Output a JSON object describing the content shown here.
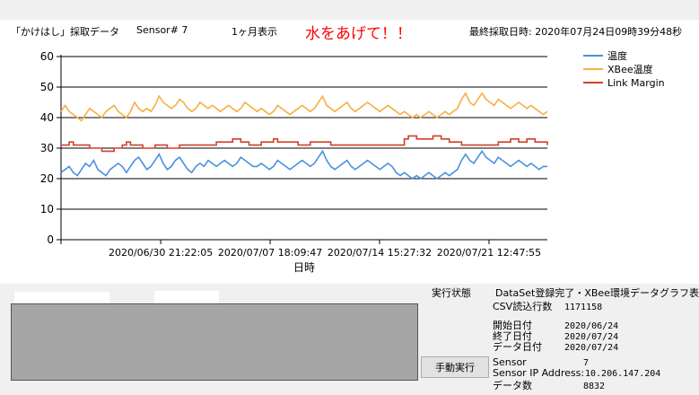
{
  "header": {
    "app_title": "「かけはし」採取データ",
    "sensor_label": "Sensor#  7",
    "period_label": "1ヶ月表示",
    "alert": "水をあげて！！",
    "last_sample": "最終採取日時: 2020年07月24日09時39分48秒"
  },
  "chart_data": {
    "type": "line",
    "xlabel": "日時",
    "ylabel": "",
    "ylim": [
      0,
      60
    ],
    "yticks": [
      "0",
      "10",
      "20",
      "30",
      "40",
      "50",
      "60"
    ],
    "xticks": [
      "2020/06/30 21:22:05",
      "2020/07/07 18:09:47",
      "2020/07/14 15:27:32",
      "2020/07/21 12:47:55"
    ],
    "grid": true,
    "legend_position": "top-right",
    "series": [
      {
        "name": "温度",
        "color": "#4a90e2",
        "values": [
          22,
          23,
          24,
          22,
          21,
          23,
          25,
          24,
          26,
          23,
          22,
          21,
          23,
          24,
          25,
          24,
          22,
          24,
          26,
          27,
          25,
          23,
          24,
          26,
          28,
          25,
          23,
          24,
          26,
          27,
          25,
          23,
          22,
          24,
          25,
          24,
          26,
          25,
          24,
          25,
          26,
          25,
          24,
          25,
          27,
          26,
          25,
          24,
          24,
          25,
          24,
          23,
          24,
          26,
          25,
          24,
          23,
          24,
          25,
          26,
          25,
          24,
          25,
          27,
          29,
          26,
          24,
          23,
          24,
          25,
          26,
          24,
          23,
          24,
          25,
          26,
          25,
          24,
          23,
          24,
          25,
          24,
          22,
          21,
          22,
          21,
          20,
          21,
          20,
          21,
          22,
          21,
          20,
          21,
          22,
          21,
          22,
          23,
          26,
          28,
          26,
          25,
          27,
          29,
          27,
          26,
          25,
          27,
          26,
          25,
          24,
          25,
          26,
          25,
          24,
          25,
          24,
          23,
          24,
          24
        ]
      },
      {
        "name": "XBee温度",
        "color": "#f5b041",
        "values": [
          42,
          44,
          42,
          41,
          40,
          39,
          41,
          43,
          42,
          41,
          40,
          42,
          43,
          44,
          42,
          41,
          40,
          42,
          45,
          43,
          42,
          43,
          42,
          44,
          47,
          45,
          44,
          43,
          44,
          46,
          45,
          43,
          42,
          43,
          45,
          44,
          43,
          44,
          43,
          42,
          43,
          44,
          43,
          42,
          43,
          45,
          44,
          43,
          42,
          43,
          42,
          41,
          42,
          44,
          43,
          42,
          41,
          42,
          43,
          44,
          43,
          42,
          43,
          45,
          47,
          44,
          43,
          42,
          43,
          44,
          45,
          43,
          42,
          43,
          44,
          45,
          44,
          43,
          42,
          43,
          44,
          43,
          42,
          41,
          42,
          41,
          40,
          41,
          40,
          41,
          42,
          41,
          40,
          41,
          42,
          41,
          42,
          43,
          46,
          48,
          45,
          44,
          46,
          48,
          46,
          45,
          44,
          46,
          45,
          44,
          43,
          44,
          45,
          44,
          43,
          44,
          43,
          42,
          41,
          42
        ]
      },
      {
        "name": "Link Margin",
        "color": "#d0402b",
        "values": [
          31,
          31,
          32,
          31,
          31,
          31,
          31,
          30,
          30,
          30,
          29,
          29,
          29,
          30,
          30,
          31,
          32,
          31,
          31,
          31,
          30,
          30,
          30,
          31,
          31,
          31,
          30,
          30,
          30,
          31,
          31,
          31,
          31,
          31,
          31,
          31,
          31,
          31,
          32,
          32,
          32,
          32,
          33,
          33,
          32,
          32,
          31,
          31,
          31,
          32,
          32,
          32,
          33,
          32,
          32,
          32,
          32,
          32,
          31,
          31,
          31,
          32,
          32,
          32,
          32,
          32,
          31,
          31,
          31,
          31,
          31,
          31,
          31,
          31,
          31,
          31,
          31,
          31,
          31,
          31,
          31,
          31,
          31,
          31,
          33,
          34,
          34,
          33,
          33,
          33,
          33,
          34,
          34,
          33,
          33,
          32,
          32,
          32,
          31,
          31,
          31,
          31,
          31,
          31,
          31,
          31,
          31,
          32,
          32,
          32,
          33,
          33,
          32,
          32,
          33,
          33,
          32,
          32,
          32,
          31
        ]
      }
    ]
  },
  "status": {
    "state_label": "実行状態",
    "state_value": "DataSet登録完了・XBee環境データグラフ表示完了",
    "csv_label": "CSV読込行数",
    "csv_value": "1171158",
    "start_label": "開始日付",
    "start_value": "2020/06/24",
    "end_label": "終了日付",
    "end_value": "2020/07/24",
    "data_date_label": "データ日付",
    "data_date_value": "2020/07/24",
    "sensor_label": "Sensor",
    "sensor_value": "7",
    "ip_label": "Sensor IP Address:",
    "ip_value": "10.206.147.204",
    "count_label": "データ数",
    "count_value": "8832"
  },
  "controls": {
    "manual_run": "手動実行"
  }
}
